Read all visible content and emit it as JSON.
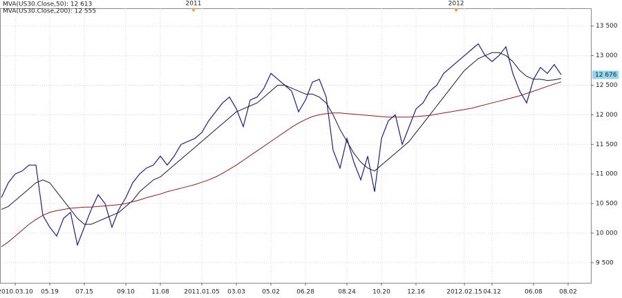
{
  "chart_data": {
    "type": "line",
    "categories": [
      null,
      null,
      "2010.03.10",
      null,
      null,
      null,
      null,
      "05.19",
      null,
      null,
      null,
      null,
      "07.15",
      null,
      null,
      null,
      null,
      null,
      "09.10",
      null,
      null,
      null,
      null,
      "11.08",
      null,
      null,
      null,
      null,
      null,
      "2011.01.05",
      null,
      null,
      null,
      null,
      "03.03",
      null,
      null,
      null,
      null,
      "05.02",
      null,
      null,
      null,
      null,
      "06.28",
      null,
      null,
      null,
      null,
      null,
      "08.24",
      null,
      null,
      null,
      null,
      "10.20",
      null,
      null,
      null,
      null,
      "12.16",
      null,
      null,
      null,
      null,
      null,
      null,
      "2012.02.15",
      null,
      null,
      null,
      "04.12",
      null,
      null,
      null,
      null,
      null,
      "06.08",
      null,
      null,
      null,
      null,
      "08.02"
    ],
    "year_markers": [
      "2011",
      "2012"
    ],
    "series": [
      {
        "color": "#1c1c8a",
        "values": [
          10600,
          10850,
          11000,
          11050,
          11150,
          11150,
          10300,
          10100,
          9950,
          10250,
          10350,
          9800,
          10100,
          10400,
          10650,
          10500,
          10100,
          10400,
          10600,
          10850,
          11000,
          11100,
          11150,
          11300,
          11150,
          11300,
          11500,
          11550,
          11600,
          11700,
          11900,
          12050,
          12200,
          12300,
          12100,
          11800,
          12250,
          12300,
          12450,
          12700,
          12600,
          12500,
          12400,
          12050,
          12250,
          12550,
          12600,
          12300,
          11400,
          11100,
          11600,
          11200,
          10900,
          11300,
          10700,
          11600,
          11900,
          12000,
          11500,
          11800,
          12100,
          12200,
          12400,
          12500,
          12700,
          12800,
          12900,
          13000,
          13100,
          13200,
          13000,
          12900,
          13000,
          13150,
          12700,
          12400,
          12200,
          12600,
          12800,
          12700,
          12850,
          12676,
          null
        ]
      },
      {
        "name": "MVA(US30.Close,50): 12 613",
        "color": "#14143c",
        "values": [
          10400,
          10450,
          10550,
          10650,
          10750,
          10850,
          10900,
          10850,
          10700,
          10550,
          10400,
          10250,
          10150,
          10150,
          10200,
          10250,
          10300,
          10350,
          10450,
          10550,
          10700,
          10800,
          10900,
          10950,
          11050,
          11150,
          11250,
          11350,
          11450,
          11550,
          11650,
          11750,
          11850,
          11950,
          12050,
          12100,
          12150,
          12200,
          12300,
          12400,
          12500,
          12500,
          12450,
          12400,
          12350,
          12350,
          12300,
          12200,
          12000,
          11750,
          11550,
          11350,
          11200,
          11100,
          11050,
          11150,
          11250,
          11350,
          11450,
          11550,
          11700,
          11850,
          12000,
          12150,
          12300,
          12450,
          12600,
          12750,
          12850,
          12950,
          13000,
          13050,
          13050,
          13000,
          12900,
          12750,
          12650,
          12600,
          12600,
          12580,
          12590,
          12613,
          null
        ]
      },
      {
        "name": "MVA(US30.Close,200): 12 555",
        "color": "#8b1a1a",
        "values": [
          9770,
          9850,
          9950,
          10050,
          10150,
          10230,
          10300,
          10350,
          10380,
          10400,
          10420,
          10430,
          10440,
          10440,
          10450,
          10460,
          10470,
          10480,
          10500,
          10530,
          10560,
          10600,
          10630,
          10660,
          10700,
          10730,
          10760,
          10790,
          10820,
          10860,
          10900,
          10950,
          11010,
          11080,
          11150,
          11230,
          11310,
          11390,
          11470,
          11550,
          11630,
          11710,
          11790,
          11860,
          11920,
          11970,
          12000,
          12020,
          12030,
          12030,
          12020,
          12010,
          12000,
          11990,
          11980,
          11970,
          11960,
          11960,
          11960,
          11960,
          11970,
          11980,
          11990,
          12010,
          12030,
          12050,
          12070,
          12090,
          12110,
          12140,
          12170,
          12200,
          12230,
          12260,
          12290,
          12320,
          12360,
          12400,
          12440,
          12480,
          12520,
          12555,
          null
        ]
      }
    ],
    "last_price": {
      "value": 12676,
      "label": "12 676"
    },
    "ylim": [
      9160,
      13800
    ],
    "yticks": [
      {
        "value": 9500,
        "label": "9 500"
      },
      {
        "value": 10000,
        "label": "10 000"
      },
      {
        "value": 10500,
        "label": "10 500"
      },
      {
        "value": 11000,
        "label": "11 000"
      },
      {
        "value": 11500,
        "label": "11 500"
      },
      {
        "value": 12000,
        "label": "12 000"
      },
      {
        "value": 12500,
        "label": "12 500"
      },
      {
        "value": 13000,
        "label": "13 000"
      },
      {
        "value": 13500,
        "label": "13 500"
      }
    ],
    "grid": true
  }
}
